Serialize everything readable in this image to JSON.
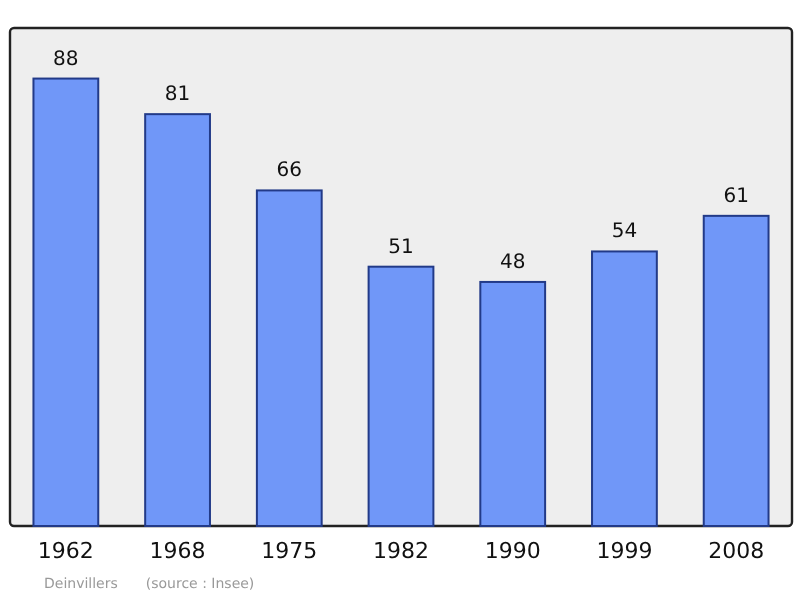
{
  "chart_data": {
    "type": "bar",
    "categories": [
      "1962",
      "1968",
      "1975",
      "1982",
      "1990",
      "1999",
      "2008"
    ],
    "values": [
      88,
      81,
      66,
      51,
      48,
      54,
      61
    ],
    "color": "#7097f8",
    "data_labels": true,
    "grid": false,
    "annotations": [
      "Deinvillers",
      "(source : Insee)"
    ]
  }
}
